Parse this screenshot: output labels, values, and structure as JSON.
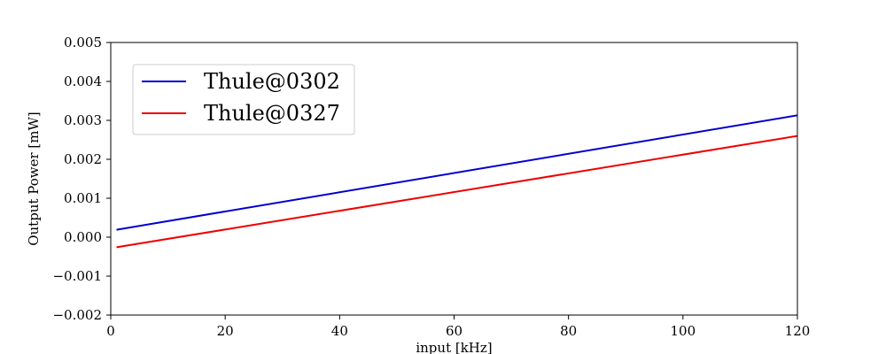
{
  "chart_data": {
    "type": "line",
    "xlabel": "input [kHz]",
    "ylabel": "Output Power [mW]",
    "xlim": [
      0,
      120
    ],
    "ylim": [
      -0.002,
      0.005
    ],
    "x_ticks": [
      0,
      20,
      40,
      60,
      80,
      100,
      120
    ],
    "x_tick_labels": [
      "0",
      "20",
      "40",
      "60",
      "80",
      "100",
      "120"
    ],
    "y_ticks": [
      -0.002,
      -0.001,
      0.0,
      0.001,
      0.002,
      0.003,
      0.004,
      0.005
    ],
    "y_tick_labels": [
      "−0.002",
      "−0.001",
      "0.000",
      "0.001",
      "0.002",
      "0.003",
      "0.004",
      "0.005"
    ],
    "grid": false,
    "legend_position": "upper-left",
    "series": [
      {
        "name": "Thule@0302",
        "color": "#0000cc",
        "x": [
          1,
          120
        ],
        "y": [
          0.00019,
          0.00313
        ]
      },
      {
        "name": "Thule@0327",
        "color": "#ee0000",
        "x": [
          1,
          120
        ],
        "y": [
          -0.00026,
          0.0026
        ]
      }
    ]
  }
}
